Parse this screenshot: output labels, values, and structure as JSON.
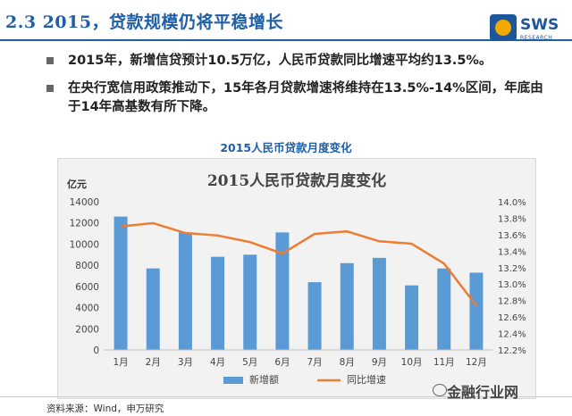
{
  "page": {
    "title": "2.3  2015，贷款规模仍将平稳增长",
    "logo_text": "SWS",
    "logo_sub": "RESEARCH",
    "bullets": [
      "2015年，新增信贷预计10.5万亿，人民币贷款同比增速平均约13.5%。",
      "在央行宽信用政策推动下，15年各月贷款增速将维持在13.5%-14%区间，年底由于14年高基数有所下降。"
    ],
    "chart_caption": "2015人民币贷款月度变化",
    "source": "资料来源：Wind，申万研究",
    "watermark": "金融行业网"
  },
  "colors": {
    "title": "#1f5fa8",
    "bar": "#5b9bd5",
    "line": "#ed7d31"
  },
  "chart_data": {
    "type": "bar",
    "title": "2015人民币贷款月度变化",
    "ylabel": "亿元",
    "categories": [
      "1月",
      "2月",
      "3月",
      "4月",
      "5月",
      "6月",
      "7月",
      "8月",
      "9月",
      "10月",
      "11月",
      "12月"
    ],
    "ylim": [
      0,
      14000
    ],
    "yticks": [
      0,
      2000,
      4000,
      6000,
      8000,
      10000,
      12000,
      14000
    ],
    "y2lim": [
      12.2,
      14.0
    ],
    "y2ticks": [
      "12.2%",
      "12.4%",
      "12.6%",
      "12.8%",
      "13.0%",
      "13.2%",
      "13.4%",
      "13.6%",
      "13.8%",
      "14.0%"
    ],
    "series": [
      {
        "name": "新增额",
        "type": "bar",
        "axis": "left",
        "values": [
          12600,
          7700,
          11100,
          8800,
          9000,
          11100,
          6400,
          8200,
          8700,
          6100,
          7700,
          7300
        ]
      },
      {
        "name": "同比增速",
        "type": "line",
        "axis": "right",
        "values": [
          13.7,
          13.74,
          13.62,
          13.59,
          13.51,
          13.37,
          13.61,
          13.64,
          13.52,
          13.49,
          13.25,
          12.74
        ]
      }
    ],
    "legend_position": "bottom",
    "grid": false
  }
}
